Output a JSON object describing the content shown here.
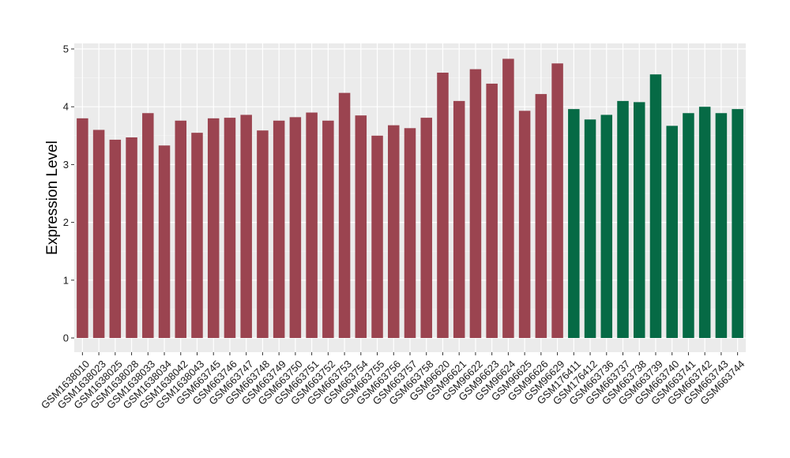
{
  "chart_data": {
    "type": "bar",
    "title": "",
    "xlabel": "",
    "ylabel": "Expression Level",
    "ylim": [
      0,
      5
    ],
    "yticks": [
      0,
      1,
      2,
      3,
      4,
      5
    ],
    "grid": true,
    "legend": "none",
    "background": "#ebebeb",
    "colors": {
      "group1": "#9b4450",
      "group2": "#066a45"
    },
    "categories": [
      "GSM1638010",
      "GSM1638023",
      "GSM1638025",
      "GSM1638028",
      "GSM1638033",
      "GSM1638034",
      "GSM1638042",
      "GSM1638043",
      "GSM663745",
      "GSM663746",
      "GSM663747",
      "GSM663748",
      "GSM663749",
      "GSM663750",
      "GSM663751",
      "GSM663752",
      "GSM663753",
      "GSM663754",
      "GSM663755",
      "GSM663756",
      "GSM663757",
      "GSM663758",
      "GSM96620",
      "GSM96621",
      "GSM96622",
      "GSM96623",
      "GSM96624",
      "GSM96625",
      "GSM96626",
      "GSM96629",
      "GSM176411",
      "GSM176412",
      "GSM663736",
      "GSM663737",
      "GSM663738",
      "GSM663739",
      "GSM663740",
      "GSM663741",
      "GSM663742",
      "GSM663743",
      "GSM663744"
    ],
    "values": [
      3.8,
      3.6,
      3.43,
      3.47,
      3.89,
      3.33,
      3.76,
      3.55,
      3.8,
      3.81,
      3.86,
      3.59,
      3.76,
      3.82,
      3.9,
      3.76,
      4.24,
      3.85,
      3.5,
      3.68,
      3.63,
      3.81,
      4.59,
      4.1,
      4.65,
      4.4,
      4.83,
      3.93,
      4.22,
      4.75,
      3.96,
      3.78,
      3.86,
      4.1,
      4.08,
      4.56,
      3.67,
      3.89,
      4.0,
      3.89,
      3.96
    ],
    "groups": [
      1,
      1,
      1,
      1,
      1,
      1,
      1,
      1,
      1,
      1,
      1,
      1,
      1,
      1,
      1,
      1,
      1,
      1,
      1,
      1,
      1,
      1,
      1,
      1,
      1,
      1,
      1,
      1,
      1,
      1,
      2,
      2,
      2,
      2,
      2,
      2,
      2,
      2,
      2,
      2,
      2
    ]
  }
}
